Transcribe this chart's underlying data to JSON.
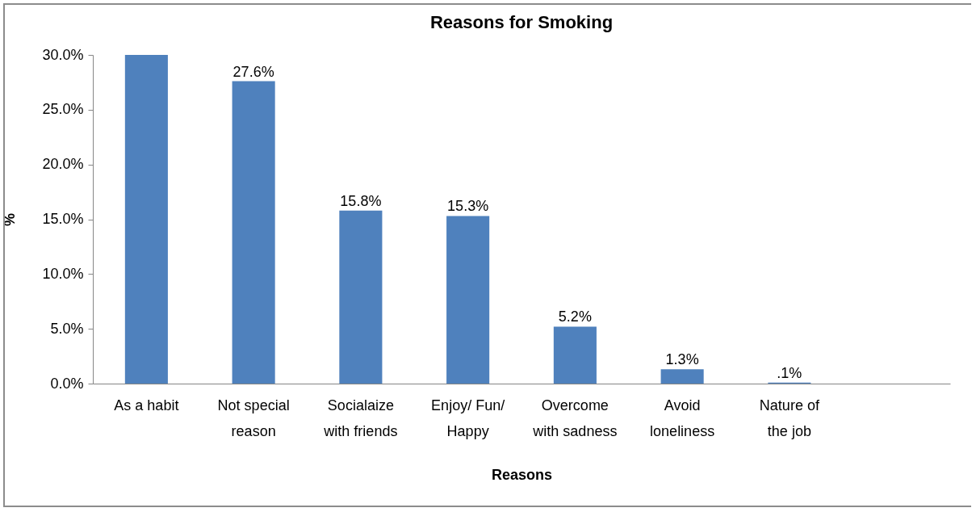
{
  "chart_data": {
    "type": "bar",
    "title": "Reasons for Smoking",
    "xlabel": "Reasons",
    "ylabel": "%",
    "categories": [
      "As a habit",
      "Not special reason",
      "Socialaize with friends",
      "Enjoy/ Fun/ Happy",
      "Overcome with sadness",
      "Avoid loneliness",
      "Nature of the job",
      null
    ],
    "values": [
      30.0,
      27.6,
      15.8,
      15.3,
      5.2,
      1.3,
      0.1,
      null
    ],
    "value_labels": [
      null,
      "27.6%",
      "15.8%",
      "15.3%",
      "5.2%",
      "1.3%",
      ".1%",
      null
    ],
    "color": "#4f81bd",
    "ylim": [
      0,
      30
    ],
    "yticks": [
      {
        "value": 0,
        "label": "0.0%"
      },
      {
        "value": 5,
        "label": "5.0%"
      },
      {
        "value": 10,
        "label": "10.0%"
      },
      {
        "value": 15,
        "label": "15.0%"
      },
      {
        "value": 20,
        "label": "20.0%"
      },
      {
        "value": 25,
        "label": "25.0%"
      },
      {
        "value": 30,
        "label": "30.0%"
      }
    ],
    "grid": false
  }
}
